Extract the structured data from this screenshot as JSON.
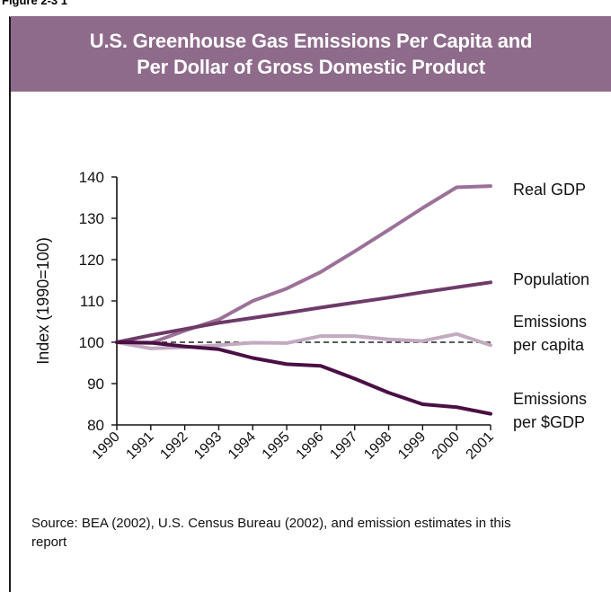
{
  "figure_label": "Figure 2-3 1",
  "colors": {
    "header_bg": "#8e6a8b",
    "real_gdp": "#9c7198",
    "population": "#6d3b68",
    "emissions_per_capita": "#c2aac0",
    "emissions_per_gdp": "#4a0f45",
    "baseline": "#222222"
  },
  "chart_data": {
    "type": "line",
    "title_lines": [
      "U.S. Greenhouse Gas Emissions Per Capita and",
      "Per Dollar of Gross Domestic Product"
    ],
    "ylabel": "Index (1990=100)",
    "xlabel": "",
    "x": [
      "1990",
      "1991",
      "1992",
      "1993",
      "1994",
      "1995",
      "1996",
      "1997",
      "1998",
      "1999",
      "2000",
      "2001"
    ],
    "ylim": [
      80,
      140
    ],
    "yticks": [
      80,
      90,
      100,
      110,
      120,
      130,
      140
    ],
    "reference_line": 100,
    "legend_placement": "right, labels at line ends",
    "series": [
      {
        "name": "Real GDP",
        "label_lines": [
          "Real GDP"
        ],
        "color_key": "real_gdp",
        "values": [
          100,
          99.8,
          102.8,
          105.5,
          110,
          113,
          117,
          122,
          127.2,
          132.5,
          137.5,
          137.8
        ]
      },
      {
        "name": "Population",
        "label_lines": [
          "Population"
        ],
        "color_key": "population",
        "values": [
          100,
          101.7,
          103.2,
          104.7,
          105.9,
          107.1,
          108.4,
          109.6,
          110.8,
          112.1,
          113.3,
          114.5
        ]
      },
      {
        "name": "Emissions per capita",
        "label_lines": [
          "Emissions",
          "per capita"
        ],
        "color_key": "emissions_per_capita",
        "values": [
          100,
          98.5,
          98.8,
          99.3,
          99.9,
          99.8,
          101.5,
          101.5,
          100.7,
          100.3,
          102,
          99.3
        ]
      },
      {
        "name": "Emissions per $GDP",
        "label_lines": [
          "Emissions",
          "per $GDP"
        ],
        "color_key": "emissions_per_gdp",
        "values": [
          100,
          99.9,
          99,
          98.3,
          96.2,
          94.7,
          94.3,
          91.2,
          87.8,
          85,
          84.3,
          82.7
        ]
      }
    ]
  },
  "source_text": "Source: BEA (2002), U.S. Census Bureau (2002), and emission estimates in this report"
}
